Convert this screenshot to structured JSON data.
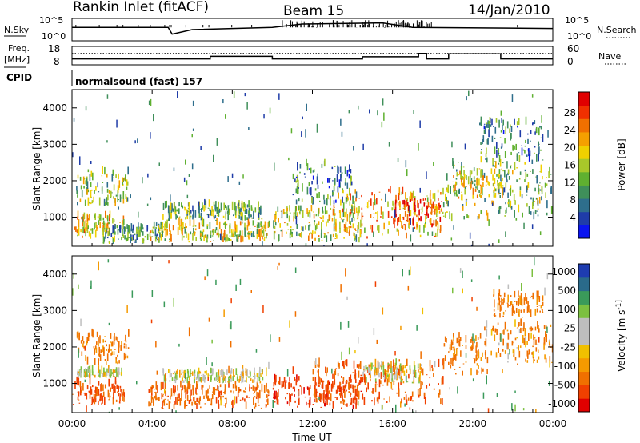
{
  "header": {
    "station": "Rankin Inlet (fitACF)",
    "beam": "Beam 15",
    "date": "14/Jan/2010"
  },
  "status_panels": {
    "nsky_label": "N.Sky",
    "nsky_ticks": [
      "10^5",
      "10^0"
    ],
    "nsearch_label": "N.Search",
    "nsearch_ticks": [
      "10^5",
      "10^0"
    ],
    "freq_label_line1": "Freq.",
    "freq_label_line2": "[MHz]",
    "freq_ticks": [
      "18",
      "8"
    ],
    "nave_label": "Nave",
    "nave_ticks": [
      "60",
      "0"
    ],
    "cpid_label": "CPID",
    "cpid_text": "normalsound (fast) 157"
  },
  "colors": {
    "power_scale": [
      "#0a14f0",
      "#1f3ca8",
      "#2e6e8c",
      "#3f8f5a",
      "#5fb030",
      "#a8c82a",
      "#f0d000",
      "#f5a000",
      "#f07000",
      "#f03000",
      "#e00000"
    ],
    "velocity_scale": [
      "#e00000",
      "#f04000",
      "#f07000",
      "#f59a00",
      "#f0c000",
      "#bebebe",
      "#bebebe",
      "#7cc040",
      "#3a9a5a",
      "#2a6a8a",
      "#1e3cb0"
    ],
    "background": "#ffffff"
  },
  "chart_data": [
    {
      "type": "heatmap",
      "name": "power",
      "ylabel": "Slant Range [km]",
      "ylim": [
        200,
        4500
      ],
      "yticks": [
        "4000",
        "3000",
        "2000",
        "1000"
      ],
      "xlim": [
        0,
        24
      ],
      "colorbar_label": "Power [dB]",
      "colorbar_ticks": [
        "28",
        "24",
        "20",
        "16",
        "12",
        "8",
        "4"
      ],
      "colorbar_range": [
        0,
        30
      ],
      "regions": [
        {
          "t": [
            0.0,
            2.6
          ],
          "r": [
            400,
            1000
          ],
          "v": 18
        },
        {
          "t": [
            0.2,
            2.8
          ],
          "r": [
            1300,
            2200
          ],
          "v": 14
        },
        {
          "t": [
            1.5,
            4.5
          ],
          "r": [
            250,
            700
          ],
          "v": 10
        },
        {
          "t": [
            3.8,
            9.8
          ],
          "r": [
            300,
            800
          ],
          "v": 17
        },
        {
          "t": [
            4.5,
            9.5
          ],
          "r": [
            900,
            1300
          ],
          "v": 12
        },
        {
          "t": [
            10.0,
            14.5
          ],
          "r": [
            300,
            1200
          ],
          "v": 16
        },
        {
          "t": [
            11.0,
            14.0
          ],
          "r": [
            1300,
            2400
          ],
          "v": 8
        },
        {
          "t": [
            13.0,
            18.5
          ],
          "r": [
            400,
            1700
          ],
          "v": 20
        },
        {
          "t": [
            16.0,
            18.5
          ],
          "r": [
            700,
            1500
          ],
          "v": 26
        },
        {
          "t": [
            18.5,
            24.0
          ],
          "r": [
            900,
            2500
          ],
          "v": 13
        },
        {
          "t": [
            19.0,
            21.5
          ],
          "r": [
            1500,
            2200
          ],
          "v": 17
        },
        {
          "t": [
            20.3,
            23.5
          ],
          "r": [
            2500,
            3600
          ],
          "v": 9
        }
      ]
    },
    {
      "type": "heatmap",
      "name": "velocity",
      "ylabel": "Slant Range [km]",
      "ylim": [
        200,
        4500
      ],
      "yticks": [
        "4000",
        "3000",
        "2000",
        "1000"
      ],
      "xlim": [
        0,
        24
      ],
      "xlabel": "Time UT",
      "xticks": [
        "00:00",
        "04:00",
        "08:00",
        "12:00",
        "16:00",
        "20:00",
        "00:00"
      ],
      "colorbar_label": "Velocity [m s^-1]",
      "colorbar_ticks": [
        "1000",
        "500",
        "100",
        "25",
        "-25",
        "-100",
        "-500",
        "-1000"
      ],
      "regions": [
        {
          "t": [
            0.0,
            2.6
          ],
          "r": [
            400,
            1000
          ],
          "v": -300
        },
        {
          "t": [
            0.2,
            2.8
          ],
          "r": [
            1500,
            2300
          ],
          "v": -150
        },
        {
          "t": [
            0.2,
            2.5
          ],
          "r": [
            1150,
            1300
          ],
          "v": 0
        },
        {
          "t": [
            3.8,
            9.8
          ],
          "r": [
            300,
            900
          ],
          "v": -200
        },
        {
          "t": [
            4.5,
            9.5
          ],
          "r": [
            1000,
            1300
          ],
          "v": 0
        },
        {
          "t": [
            10.0,
            14.5
          ],
          "r": [
            300,
            1100
          ],
          "v": -400
        },
        {
          "t": [
            12.0,
            18.5
          ],
          "r": [
            400,
            1500
          ],
          "v": -250
        },
        {
          "t": [
            14.5,
            17.5
          ],
          "r": [
            1000,
            1500
          ],
          "v": 0
        },
        {
          "t": [
            18.5,
            20.5
          ],
          "r": [
            1200,
            2300
          ],
          "v": -150
        },
        {
          "t": [
            20.5,
            24.0
          ],
          "r": [
            1500,
            2600
          ],
          "v": -100
        },
        {
          "t": [
            21.0,
            23.5
          ],
          "r": [
            2800,
            3400
          ],
          "v": -150
        }
      ]
    }
  ],
  "nsky_series": [
    {
      "t": 0,
      "v": 0.6
    },
    {
      "t": 4.8,
      "v": 0.6
    },
    {
      "t": 5.0,
      "v": 0.3
    },
    {
      "t": 6.0,
      "v": 0.5
    },
    {
      "t": 10,
      "v": 0.6
    },
    {
      "t": 11.5,
      "v": 0.75
    },
    {
      "t": 15.5,
      "v": 0.8
    },
    {
      "t": 17,
      "v": 0.6
    },
    {
      "t": 24,
      "v": 0.55
    }
  ],
  "freq_series": [
    {
      "t": 0,
      "v": 11.2
    },
    {
      "t": 6.9,
      "v": 11.2
    },
    {
      "t": 6.9,
      "v": 12.6
    },
    {
      "t": 10.0,
      "v": 12.6
    },
    {
      "t": 10.0,
      "v": 11.2
    },
    {
      "t": 14.5,
      "v": 11.2
    },
    {
      "t": 14.5,
      "v": 12.4
    },
    {
      "t": 17.3,
      "v": 12.4
    },
    {
      "t": 17.3,
      "v": 14.2
    },
    {
      "t": 17.7,
      "v": 14.2
    },
    {
      "t": 17.7,
      "v": 11.2
    },
    {
      "t": 18.8,
      "v": 11.2
    },
    {
      "t": 18.8,
      "v": 14.0
    },
    {
      "t": 21.4,
      "v": 14.0
    },
    {
      "t": 21.4,
      "v": 11.2
    },
    {
      "t": 24,
      "v": 11.2
    }
  ],
  "nave_level": 0.62
}
